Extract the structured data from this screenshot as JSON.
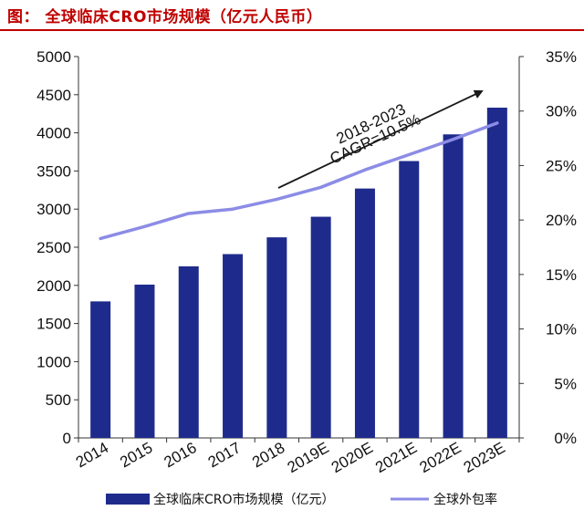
{
  "page": {
    "title": "图：  全球临床CRO市场规模（亿元人民币）"
  },
  "chart_data": {
    "type": "bar",
    "categories": [
      "2014",
      "2015",
      "2016",
      "2017",
      "2018",
      "2019E",
      "2020E",
      "2021E",
      "2022E",
      "2023E"
    ],
    "series": [
      {
        "name": "全球临床CRO市场规模（亿元）",
        "type": "bar",
        "axis": "left",
        "color": "#1f2b8c",
        "values": [
          1790,
          2010,
          2250,
          2410,
          2630,
          2900,
          3270,
          3630,
          3980,
          4330
        ]
      },
      {
        "name": "全球外包率",
        "type": "line",
        "axis": "right",
        "color": "#8c8ce6",
        "values": [
          0.183,
          0.194,
          0.206,
          0.21,
          0.219,
          0.23,
          0.246,
          0.26,
          0.274,
          0.289
        ]
      }
    ],
    "y_left": {
      "min": 0,
      "max": 5000,
      "ticks": [
        "0",
        "500",
        "1000",
        "1500",
        "2000",
        "2500",
        "3000",
        "3500",
        "4000",
        "4500",
        "5000"
      ]
    },
    "y_right": {
      "min": 0,
      "max": 0.35,
      "ticks": [
        "0%",
        "5%",
        "10%",
        "15%",
        "20%",
        "25%",
        "30%",
        "35%"
      ]
    },
    "annotation": {
      "lines": [
        "2018-2023",
        "CAGR=10.5%"
      ],
      "arrow_from": "2018",
      "arrow_to": "2022E"
    },
    "grid": false,
    "legend": "bottom"
  }
}
